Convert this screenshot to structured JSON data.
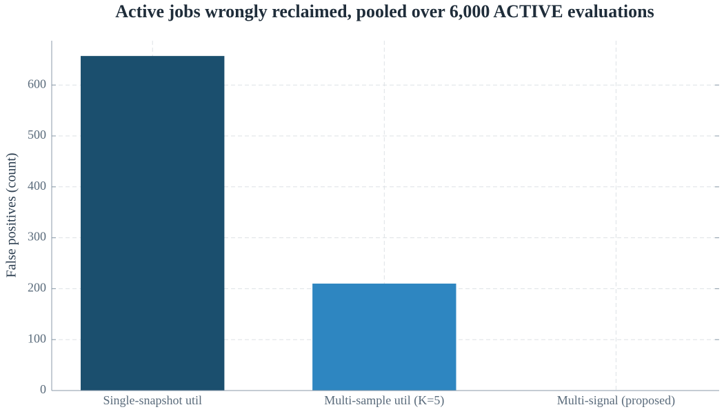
{
  "chart_data": {
    "type": "bar",
    "title": "Active jobs wrongly reclaimed, pooled over 6,000 ACTIVE evaluations",
    "y_label": "False positives (count)",
    "categories": [
      "Single-snapshot util",
      "Multi-sample util (K=5)",
      "Multi-signal (proposed)"
    ],
    "values": [
      657,
      210,
      0
    ],
    "colors": [
      "#1b4f6e",
      "#2e86c1",
      "#5dade2"
    ],
    "ylim": [
      0,
      687
    ],
    "yticks": [
      0,
      100,
      200,
      300,
      400,
      500,
      600
    ],
    "grid": true
  }
}
